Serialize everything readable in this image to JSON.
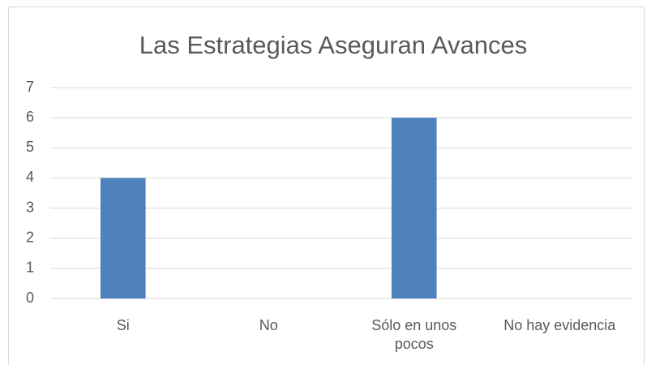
{
  "chart_data": {
    "type": "bar",
    "title": "Las Estrategias Aseguran Avances",
    "categories": [
      "Si",
      "No",
      "Sólo en unos pocos",
      "No hay evidencia"
    ],
    "values": [
      4,
      0,
      6,
      0
    ],
    "color": "#4f81bd",
    "ylim": [
      0,
      7
    ],
    "yticks": [
      0,
      1,
      2,
      3,
      4,
      5,
      6,
      7
    ],
    "grid": true
  }
}
